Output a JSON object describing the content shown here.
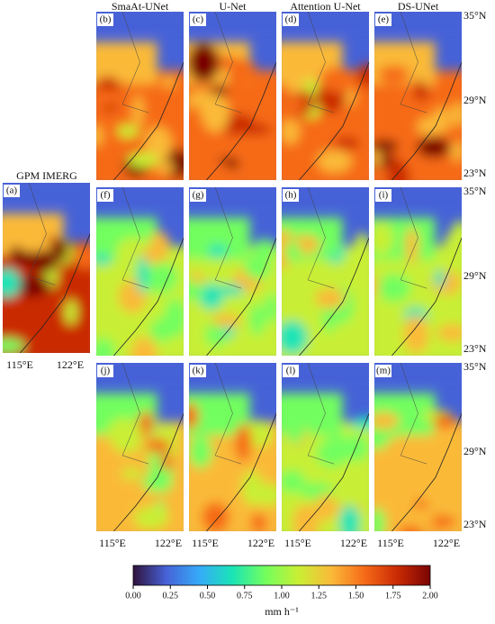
{
  "gpm": {
    "title": "GPM IMERG",
    "label": "(a)",
    "lon_labels": [
      "115°E",
      "122°E"
    ]
  },
  "columns": [
    {
      "title": "SmaAt-UNet",
      "panels": [
        "(b)",
        "(f)",
        "(j)"
      ]
    },
    {
      "title": "U-Net",
      "panels": [
        "(c)",
        "(g)",
        "(k)"
      ]
    },
    {
      "title": "Attention U-Net",
      "panels": [
        "(d)",
        "(h)",
        "(l)"
      ]
    },
    {
      "title": "DS-UNet",
      "panels": [
        "(e)",
        "(i)",
        "(m)"
      ]
    }
  ],
  "lat_labels": [
    "35°N",
    "29°N",
    "23°N"
  ],
  "lon_labels": [
    "115°E",
    "122°E"
  ],
  "colorbar": {
    "label": "mm h⁻¹",
    "lim": [
      0,
      2
    ],
    "ticks": [
      {
        "value": 0,
        "label": "0.00"
      },
      {
        "value": 0.25,
        "label": "0.25"
      },
      {
        "value": 0.5,
        "label": "0.50"
      },
      {
        "value": 0.75,
        "label": "0.75"
      },
      {
        "value": 1,
        "label": "1.00"
      },
      {
        "value": 1.25,
        "label": "1.25"
      },
      {
        "value": 1.5,
        "label": "1.50"
      },
      {
        "value": 1.75,
        "label": "1.75"
      },
      {
        "value": 2,
        "label": "2.00"
      }
    ],
    "colors": [
      "#30123b",
      "#4662d7",
      "#36aaf9",
      "#1ae4b6",
      "#72fe5e",
      "#c8ef34",
      "#faba39",
      "#f66b19",
      "#ca2a04",
      "#7a0403"
    ]
  }
}
